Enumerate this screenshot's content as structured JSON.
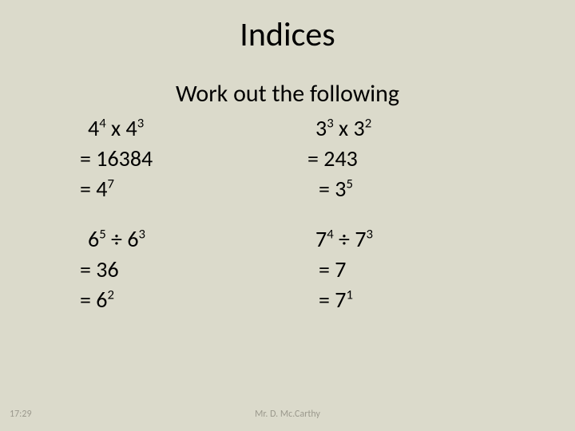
{
  "background_color": "#dbdacb",
  "title": "Indices",
  "subtitle": "Work out the following",
  "problems": {
    "topLeft": {
      "expr_html": "4<sup>4</sup> x 4<sup>3</sup>",
      "line1": "= 16384",
      "line2_html": "= 4<sup>7</sup>"
    },
    "topRight": {
      "expr_html": "3<sup>3</sup> x 3<sup>2</sup>",
      "line1": "= 243",
      "line2_html": "= 3<sup>5</sup>"
    },
    "bottomLeft": {
      "expr_html": "6<sup>5</sup> ÷ 6<sup>3</sup>",
      "line1": "= 36",
      "line2_html": "= 6<sup>2</sup>"
    },
    "bottomRight": {
      "expr_html": "7<sup>4</sup> ÷ 7<sup>3</sup>",
      "line1": "= 7",
      "line2_html": "= 7<sup>1</sup>"
    }
  },
  "footer": {
    "left": "17:29",
    "center": "Mr. D. Mc.Carthy"
  },
  "typography": {
    "title_fontsize": 42,
    "subtitle_fontsize": 30,
    "body_fontsize": 28,
    "footer_fontsize": 12,
    "footer_color": "#9b998d",
    "text_color": "#000000"
  }
}
